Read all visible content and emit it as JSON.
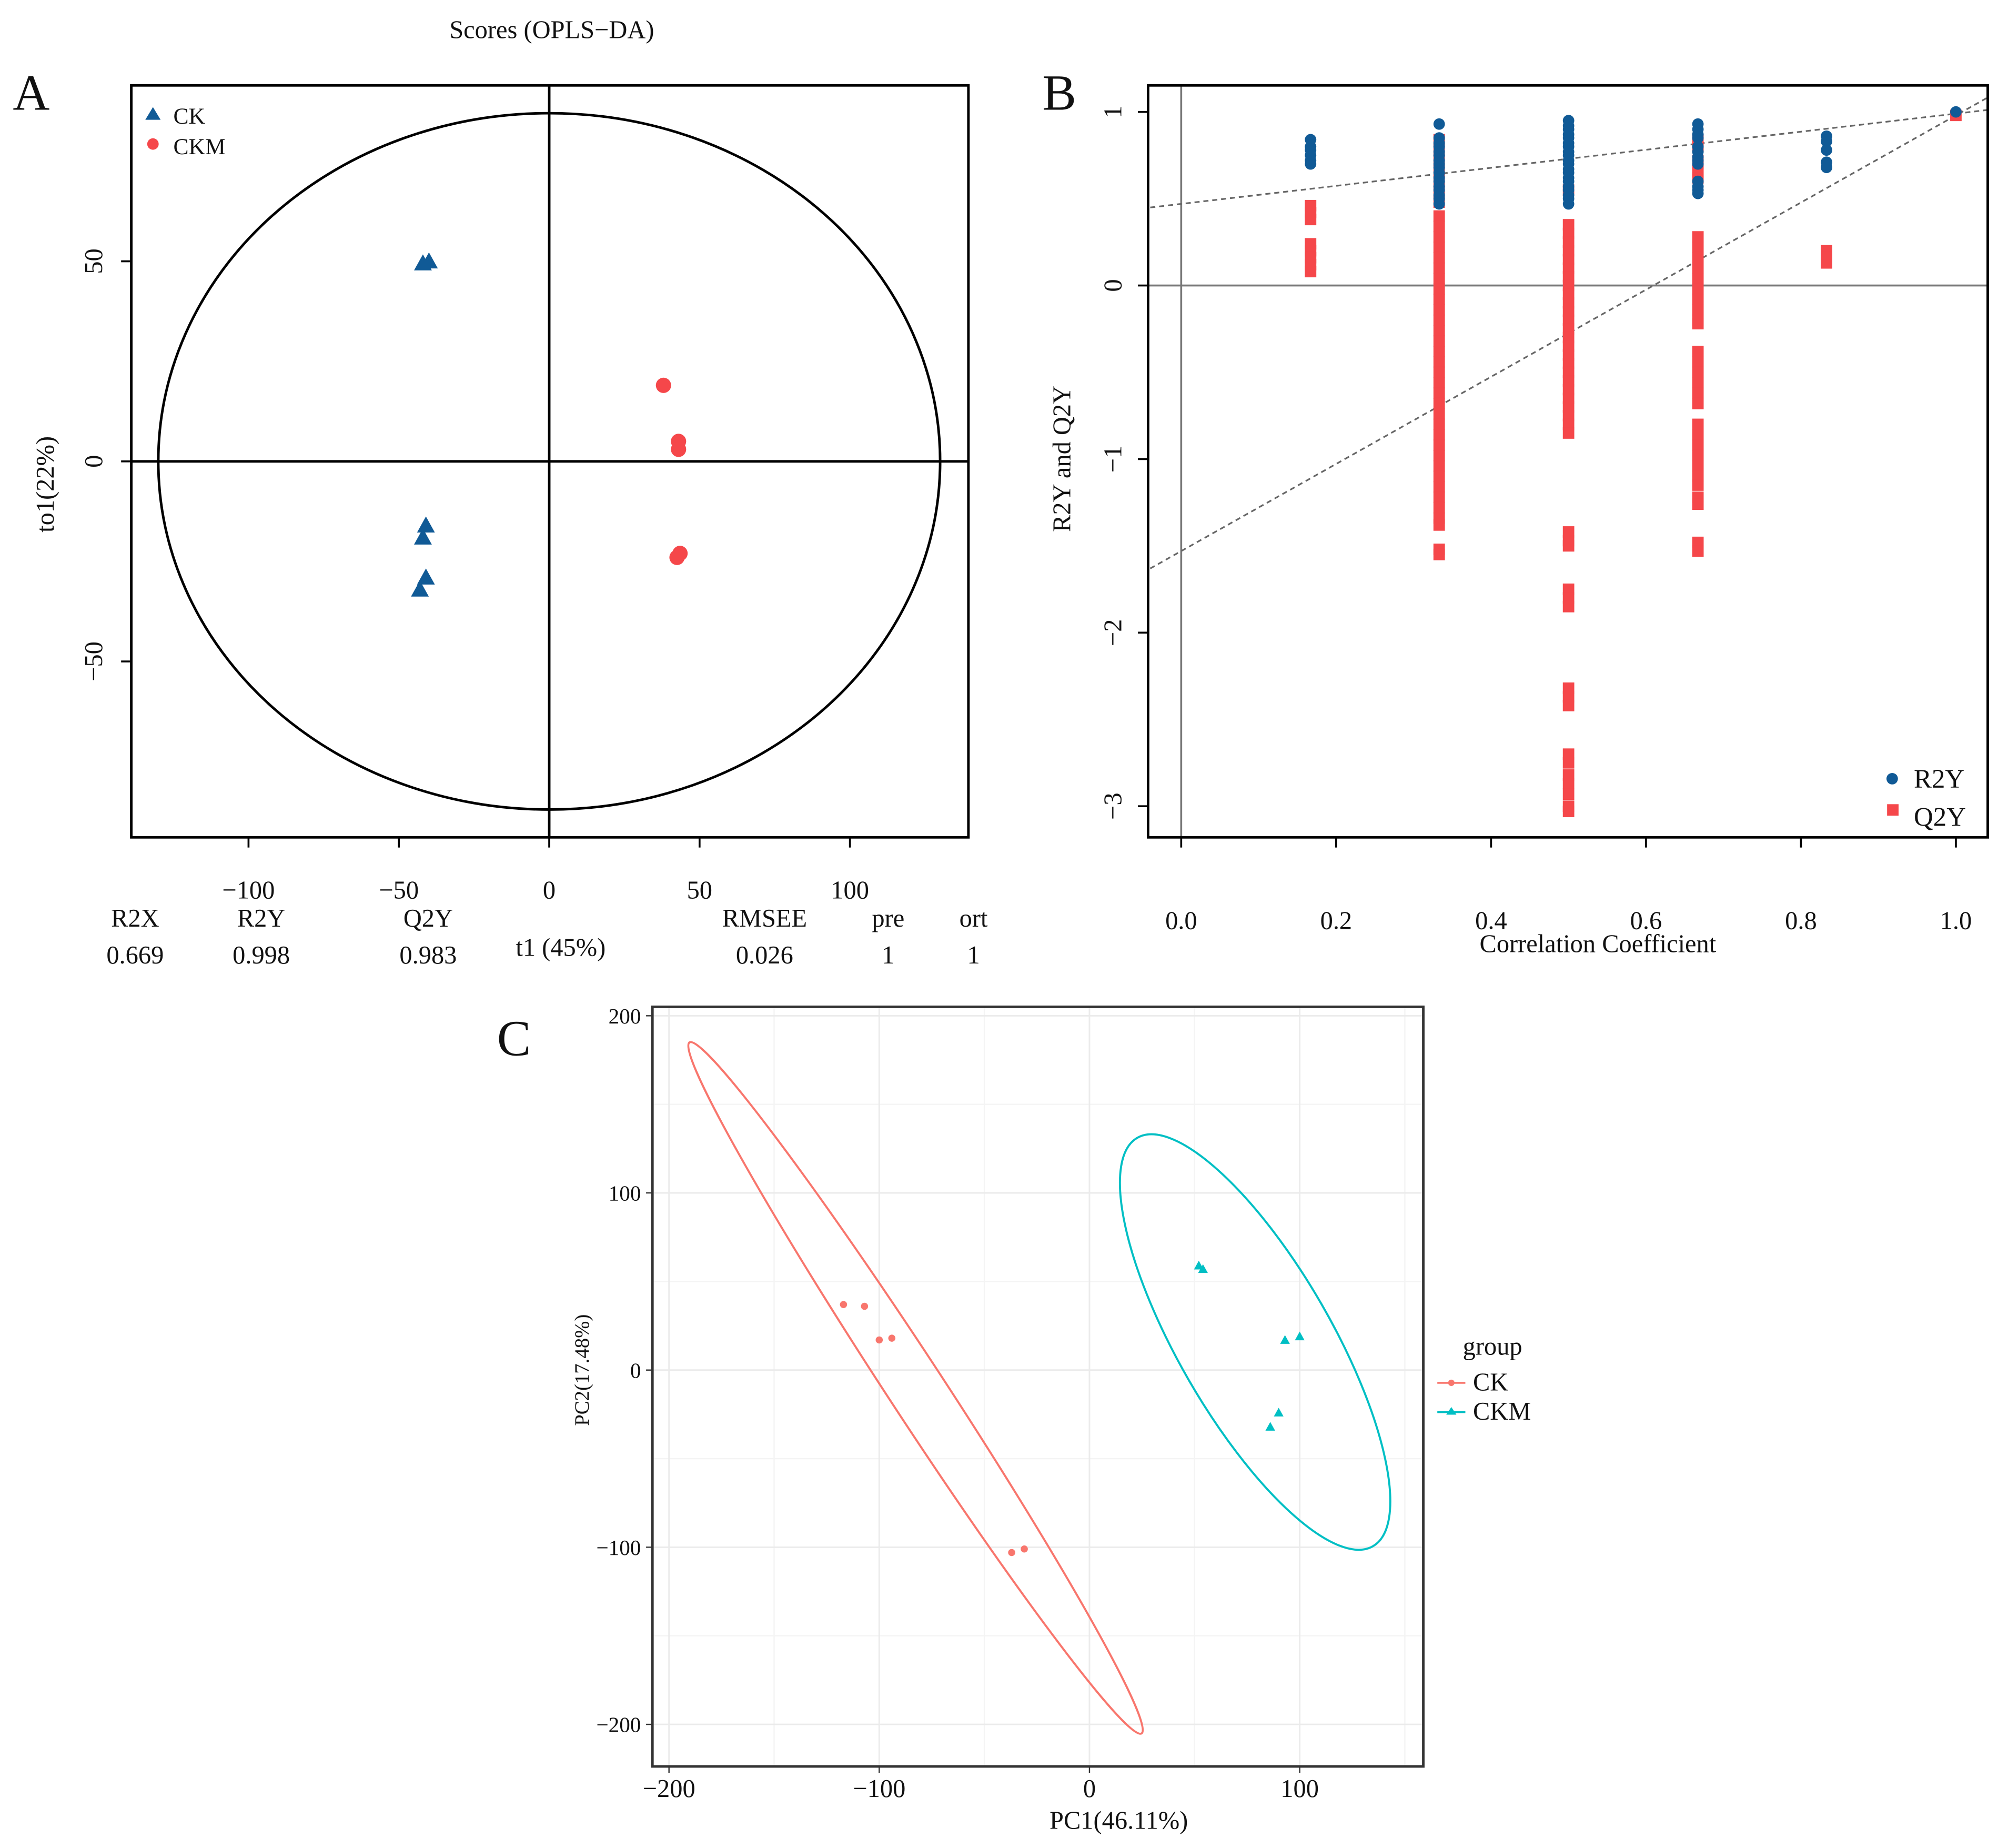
{
  "colors": {
    "ck_blue": "#105A96",
    "ckm_red": "#F5474A",
    "pca_ck": "#F8766D",
    "pca_ckm": "#00BFC4",
    "grid": "#EBEBEB"
  },
  "chart_data": [
    {
      "panel": "A",
      "type": "scatter",
      "title": "Scores (OPLS−DA)",
      "xlabel": "t1 (45%)",
      "ylabel": "to1(22%)",
      "xlim": [
        -140,
        140
      ],
      "ylim": [
        -95,
        94
      ],
      "xticks": [
        "−100",
        "−50",
        "0",
        "50",
        "100"
      ],
      "xtick_values": [
        -100,
        -50,
        0,
        50,
        100
      ],
      "yticks": [
        "50",
        "0",
        "−50"
      ],
      "ytick_values": [
        50,
        0,
        -50
      ],
      "legend": [
        "CK",
        "CKM"
      ],
      "legend_position": "top-left",
      "series": [
        {
          "name": "CK",
          "marker": "triangle",
          "points": [
            [
              -42,
              49.5
            ],
            [
              -40,
              50
            ],
            [
              -41,
              -16
            ],
            [
              -42,
              -19
            ],
            [
              -41,
              -29
            ],
            [
              -43,
              -32
            ]
          ]
        },
        {
          "name": "CKM",
          "marker": "circle",
          "points": [
            [
              38,
              19
            ],
            [
              43,
              5
            ],
            [
              43,
              3
            ],
            [
              43.5,
              -23
            ],
            [
              42.5,
              -24
            ]
          ]
        }
      ],
      "ellipse": {
        "rx": 130,
        "ry": 87
      },
      "stats": {
        "headers": [
          "R2X",
          "R2Y",
          "Q2Y",
          "RMSEE",
          "pre",
          "ort"
        ],
        "values": [
          "0.669",
          "0.998",
          "0.983",
          "0.026",
          "1",
          "1"
        ]
      }
    },
    {
      "panel": "B",
      "type": "scatter",
      "xlabel": "Correlation Coefficient",
      "ylabel": "R2Y and Q2Y",
      "xlim": [
        -0.04,
        1.04
      ],
      "ylim": [
        -3.18,
        1.16
      ],
      "xticks": [
        "0.0",
        "0.2",
        "0.4",
        "0.6",
        "0.8",
        "1.0"
      ],
      "xtick_values": [
        0,
        0.2,
        0.4,
        0.6,
        0.8,
        1.0
      ],
      "yticks": [
        "1",
        "0",
        "−1",
        "−2",
        "−3"
      ],
      "ytick_values": [
        1,
        0,
        -1,
        -2,
        -3
      ],
      "legend": [
        "R2Y",
        "Q2Y"
      ],
      "legend_position": "bottom-right",
      "regression_lines": [
        {
          "name": "R2Y",
          "intercept": 0.47,
          "slope": 0.52
        },
        {
          "name": "Q2Y",
          "intercept": -1.53,
          "slope": 2.51
        }
      ],
      "series": [
        {
          "name": "R2Y",
          "marker": "circle",
          "groups": [
            {
              "x": 0.167,
              "y": [
                0.84,
                0.8,
                0.78,
                0.75,
                0.72,
                0.7
              ]
            },
            {
              "x": 0.333,
              "y": [
                0.93,
                0.85,
                0.82,
                0.8,
                0.77,
                0.75,
                0.72,
                0.7,
                0.68,
                0.65,
                0.62,
                0.6,
                0.57,
                0.55,
                0.52,
                0.5,
                0.47
              ]
            },
            {
              "x": 0.5,
              "y": [
                0.95,
                0.92,
                0.9,
                0.87,
                0.85,
                0.82,
                0.8,
                0.77,
                0.75,
                0.72,
                0.7,
                0.67,
                0.65,
                0.62,
                0.6,
                0.57,
                0.55,
                0.52,
                0.5,
                0.47
              ]
            },
            {
              "x": 0.667,
              "y": [
                0.93,
                0.9,
                0.87,
                0.85,
                0.8,
                0.77,
                0.74,
                0.72,
                0.7,
                0.6,
                0.57,
                0.55,
                0.53
              ]
            },
            {
              "x": 0.833,
              "y": [
                0.86,
                0.83,
                0.78,
                0.71,
                0.68
              ]
            },
            {
              "x": 1.0,
              "y": [
                1.0
              ]
            }
          ]
        },
        {
          "name": "Q2Y",
          "marker": "square",
          "groups": [
            {
              "x": 0.167,
              "y": [
                0.46,
                0.42,
                0.38,
                0.24,
                0.2,
                0.16,
                0.12,
                0.08
              ]
            },
            {
              "x": 0.333,
              "y": [
                0.84,
                0.78,
                0.72,
                0.66,
                0.6,
                0.54,
                0.48,
                0.4,
                0.34,
                0.28,
                0.22,
                0.16,
                0.1,
                0.04,
                -0.02,
                -0.08,
                -0.14,
                -0.2,
                -0.26,
                -0.32,
                -0.38,
                -0.44,
                -0.5,
                -0.56,
                -0.62,
                -0.68,
                -0.74,
                -0.8,
                -0.86,
                -0.92,
                -0.98,
                -1.04,
                -1.1,
                -1.16,
                -1.22,
                -1.28,
                -1.34,
                -1.38,
                -1.52,
                -1.55
              ]
            },
            {
              "x": 0.5,
              "y": [
                0.55,
                0.35,
                0.3,
                0.25,
                0.2,
                0.15,
                0.1,
                0.05,
                0,
                -0.05,
                -0.1,
                -0.15,
                -0.2,
                -0.25,
                -0.3,
                -0.35,
                -0.4,
                -0.45,
                -0.5,
                -0.55,
                -0.6,
                -0.65,
                -0.7,
                -0.75,
                -0.8,
                -0.85,
                -1.42,
                -1.47,
                -1.5,
                -1.75,
                -1.8,
                -1.85,
                -2.32,
                -2.37,
                -2.42,
                -2.7,
                -2.75,
                -2.82,
                -2.87,
                -2.93,
                -3.0,
                -3.03
              ]
            },
            {
              "x": 0.667,
              "y": [
                0.84,
                0.8,
                0.72,
                0.66,
                0.62,
                0.28,
                0.22,
                0.16,
                0.1,
                0.04,
                -0.02,
                -0.08,
                -0.14,
                -0.2,
                -0.22,
                -0.38,
                -0.44,
                -0.5,
                -0.56,
                -0.62,
                -0.68,
                -0.8,
                -0.86,
                -0.92,
                -0.98,
                -1.04,
                -1.1,
                -1.15,
                -1.22,
                -1.26,
                -1.48,
                -1.53
              ]
            },
            {
              "x": 0.833,
              "y": [
                0.2,
                0.16,
                0.13
              ]
            },
            {
              "x": 1.0,
              "y": [
                0.98
              ]
            }
          ]
        }
      ]
    },
    {
      "panel": "C",
      "type": "scatter",
      "xlabel": "PC1(46.11%)",
      "ylabel": "PC2(17.48%)",
      "xlim": [
        -208,
        158
      ],
      "ylim": [
        -225,
        205
      ],
      "xticks": [
        "−200",
        "−100",
        "0",
        "100"
      ],
      "xtick_values": [
        -200,
        -100,
        0,
        100
      ],
      "yticks": [
        "200",
        "100",
        "0",
        "−100",
        "−200"
      ],
      "ytick_values": [
        200,
        100,
        0,
        -100,
        -200
      ],
      "legend_title": "group",
      "legend": [
        "CK",
        "CKM"
      ],
      "legend_position": "right",
      "series": [
        {
          "name": "CK",
          "marker": "circle",
          "points": [
            [
              -117,
              37
            ],
            [
              -107,
              36
            ],
            [
              -100,
              17
            ],
            [
              -94,
              18
            ],
            [
              -37,
              -103
            ],
            [
              -31,
              -101
            ]
          ]
        },
        {
          "name": "CKM",
          "marker": "triangle",
          "points": [
            [
              52,
              59
            ],
            [
              54,
              57
            ],
            [
              93,
              17
            ],
            [
              100,
              19
            ],
            [
              90,
              -24
            ],
            [
              86,
              -32
            ]
          ]
        }
      ]
    }
  ]
}
